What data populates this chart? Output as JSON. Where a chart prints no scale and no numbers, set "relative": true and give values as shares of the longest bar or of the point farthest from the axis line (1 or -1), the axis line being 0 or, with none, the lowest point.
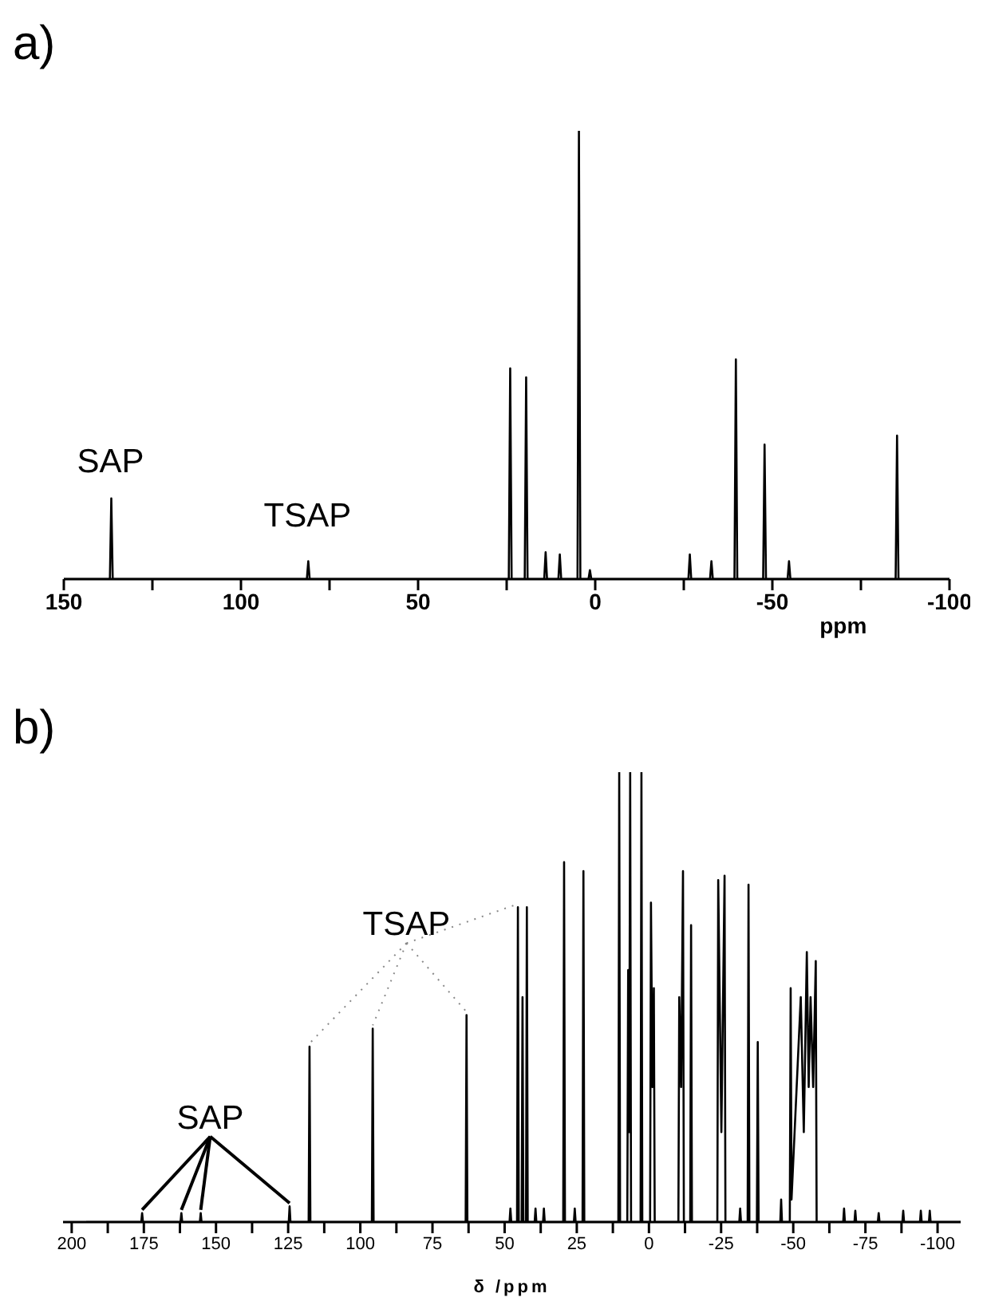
{
  "chart_data": [
    {
      "type": "line",
      "title": "a)",
      "xlabel": "ppm",
      "relative": true,
      "color": "#000000",
      "xlim": [
        150,
        -100
      ],
      "xticks": [
        150,
        {
          "value": 125,
          "label": null
        },
        100,
        {
          "value": 75,
          "label": null
        },
        50,
        {
          "value": 25,
          "label": null
        },
        0,
        {
          "value": -25,
          "label": null
        },
        -50,
        {
          "value": -75,
          "label": null
        },
        -100
      ],
      "annotations": [
        "SAP",
        "TSAP"
      ],
      "x": [
        150,
        137,
        136.6,
        136.2,
        81.4,
        81,
        80.6,
        24.4,
        24,
        23.6,
        19.9,
        19.5,
        19.1,
        14.4,
        14,
        13.6,
        10.4,
        10,
        9.6,
        5,
        4.6,
        4.2,
        1.9,
        1.5,
        1.1,
        -26.3,
        -26.7,
        -27.1,
        -32.4,
        -32.8,
        -33.2,
        -39.3,
        -39.7,
        -40.1,
        -47.4,
        -47.8,
        -48.2,
        -54.3,
        -54.7,
        -55.1,
        -84.8,
        -85.2,
        -85.6,
        -100
      ],
      "values": [
        0,
        0,
        0.18,
        0,
        0,
        0.04,
        0,
        0,
        0.47,
        0,
        0,
        0.45,
        0,
        0,
        0.06,
        0,
        0,
        0.055,
        0,
        0,
        1,
        0,
        0,
        0.02,
        0,
        0,
        0.055,
        0,
        0,
        0.04,
        0,
        0,
        0.49,
        0,
        0,
        0.3,
        0,
        0,
        0.04,
        0,
        0,
        0.32,
        0,
        0
      ]
    },
    {
      "type": "line",
      "title": "b)",
      "xlabel": "δ /ppm",
      "relative": true,
      "color": "#000000",
      "xlim": [
        203,
        -108
      ],
      "xticks": [
        200,
        {
          "value": 187.5,
          "label": null
        },
        175,
        {
          "value": 162.5,
          "label": null
        },
        150,
        {
          "value": 137.5,
          "label": null
        },
        125,
        {
          "value": 112.5,
          "label": null
        },
        100,
        {
          "value": 87.5,
          "label": null
        },
        75,
        {
          "value": 62.5,
          "label": null
        },
        50,
        {
          "value": 37.5,
          "label": null
        },
        25,
        {
          "value": 12.5,
          "label": null
        },
        0,
        {
          "value": -12.5,
          "label": null
        },
        -25,
        {
          "value": -37.5,
          "label": null
        },
        -50,
        {
          "value": -62.5,
          "label": null
        },
        -75,
        {
          "value": -87.5,
          "label": null
        },
        -100
      ],
      "annotations": [
        "SAP",
        "TSAP"
      ],
      "x": [
        195,
        175.9,
        175.6,
        175.3,
        162.3,
        162,
        161.7,
        155.6,
        155.3,
        155,
        124.8,
        124.5,
        124.2,
        117.9,
        117.6,
        117.3,
        96,
        95.7,
        95.4,
        63.5,
        63.2,
        62.9,
        48.3,
        48,
        47.7,
        45.7,
        45.4,
        45.1,
        44.1,
        43.8,
        43.5,
        42.6,
        42.3,
        42,
        39.6,
        39.3,
        39,
        36.7,
        36.4,
        36.1,
        29.7,
        29.4,
        29.1,
        26,
        25.7,
        25.4,
        23,
        22.7,
        22.4,
        10.6,
        10.3,
        10,
        7.5,
        7.2,
        6.85,
        6.5,
        6.2,
        2.9,
        2.6,
        2.3,
        -0.4,
        -0.7,
        -1.2,
        -1.7,
        -2,
        -10.2,
        -10.5,
        -11.15,
        -11.8,
        -12.1,
        -14.3,
        -14.6,
        -14.9,
        -23.7,
        -24,
        -25.1,
        -26.2,
        -26.5,
        -31.3,
        -31.6,
        -31.9,
        -34.2,
        -34.5,
        -34.8,
        -37.4,
        -37.7,
        -38,
        -45.5,
        -45.8,
        -46.1,
        -48.8,
        -49.1,
        -49.4,
        -52.6,
        -53.65,
        -54.7,
        -55.35,
        -56,
        -56.9,
        -57.8,
        -58.1,
        -67.3,
        -67.6,
        -67.9,
        -71.2,
        -71.5,
        -71.8,
        -79.3,
        -79.6,
        -79.9,
        -87.8,
        -88.1,
        -88.4,
        -93.9,
        -94.2,
        -94.5,
        -97,
        -97.3,
        -97.6,
        -108
      ],
      "values": [
        0,
        0,
        0.02,
        0,
        0,
        0.02,
        0,
        0,
        0.02,
        0,
        0,
        0.035,
        0,
        0,
        0.39,
        0,
        0,
        0.43,
        0,
        0,
        0.46,
        0,
        0,
        0.03,
        0,
        0,
        0.7,
        0,
        0,
        0.5,
        0,
        0,
        0.7,
        0,
        0,
        0.03,
        0,
        0,
        0.03,
        0,
        0,
        0.8,
        0,
        0,
        0.03,
        0,
        0,
        0.78,
        0,
        0,
        1,
        0,
        0,
        0.56,
        0.2,
        1,
        0,
        0,
        1,
        0,
        0,
        0.71,
        0.3,
        0.52,
        0,
        0,
        0.5,
        0.3,
        0.78,
        0,
        0,
        0.66,
        0,
        0,
        0.76,
        0.2,
        0.77,
        0,
        0,
        0.03,
        0,
        0,
        0.75,
        0,
        0,
        0.4,
        0,
        0,
        0.05,
        0,
        0,
        0.52,
        0.05,
        0.5,
        0.2,
        0.6,
        0.3,
        0.5,
        0.3,
        0.58,
        0,
        0,
        0.03,
        0,
        0,
        0.025,
        0,
        0,
        0.02,
        0,
        0,
        0.025,
        0,
        0,
        0.025,
        0,
        0,
        0.025,
        0,
        0
      ]
    }
  ]
}
